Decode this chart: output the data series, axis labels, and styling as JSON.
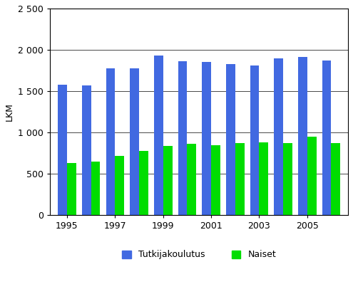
{
  "years": [
    1995,
    1996,
    1997,
    1998,
    1999,
    2000,
    2001,
    2002,
    2003,
    2004,
    2005,
    2006
  ],
  "tutkijakoulutus": [
    1580,
    1570,
    1775,
    1775,
    1930,
    1860,
    1855,
    1825,
    1810,
    1900,
    1910,
    1870
  ],
  "naiset": [
    630,
    645,
    720,
    775,
    840,
    860,
    845,
    870,
    880,
    870,
    950,
    870
  ],
  "bar_color_blue": "#4169E1",
  "bar_color_green": "#00DD00",
  "ylabel": "LKM",
  "ylim": [
    0,
    2500
  ],
  "yticks": [
    0,
    500,
    1000,
    1500,
    2000,
    2500
  ],
  "ytick_labels": [
    "0",
    "500",
    "1 000",
    "1 500",
    "2 000",
    "2 500"
  ],
  "xtick_labels": [
    "1995",
    "1997",
    "1999",
    "2001",
    "2003",
    "2005"
  ],
  "legend_labels": [
    "Tutkijakoulutus",
    "Naiset"
  ],
  "background_color": "#FFFFFF",
  "plot_background": "#FFFFFF",
  "bar_width": 0.38,
  "grid_color": "#000000",
  "font_size": 9,
  "legend_font_size": 9
}
